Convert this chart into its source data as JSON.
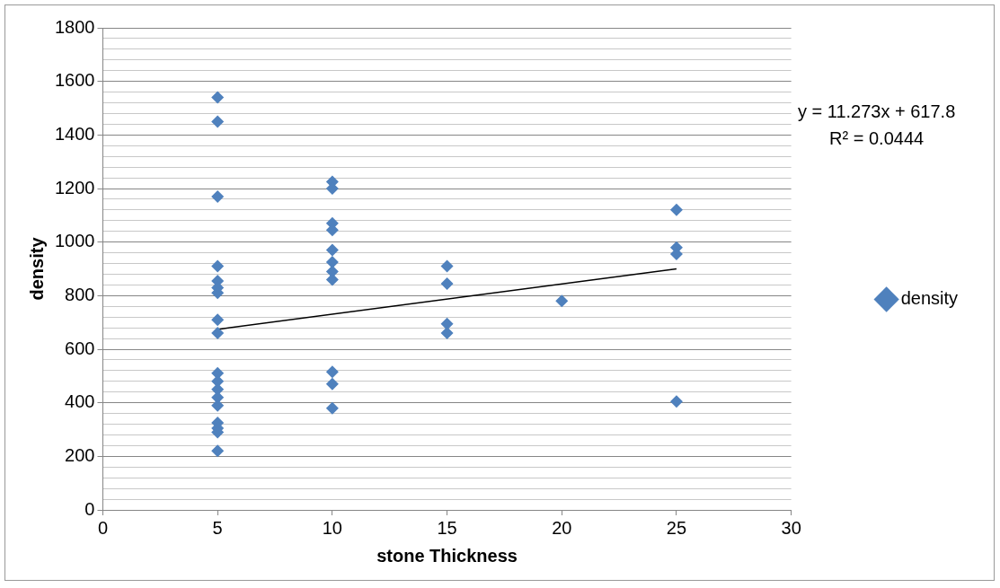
{
  "chart_data": {
    "type": "scatter",
    "xlabel": "stone Thickness",
    "ylabel": "density",
    "xlim": [
      0,
      30
    ],
    "xticks": [
      0,
      5,
      10,
      15,
      20,
      25,
      30
    ],
    "ylim": [
      0,
      1800
    ],
    "yticks": [
      0,
      {
        "value": 40,
        "label": null
      },
      {
        "value": 80,
        "label": null
      },
      {
        "value": 120,
        "label": null
      },
      {
        "value": 160,
        "label": null
      },
      200,
      {
        "value": 240,
        "label": null
      },
      {
        "value": 280,
        "label": null
      },
      {
        "value": 320,
        "label": null
      },
      {
        "value": 360,
        "label": null
      },
      400,
      {
        "value": 440,
        "label": null
      },
      {
        "value": 480,
        "label": null
      },
      {
        "value": 520,
        "label": null
      },
      {
        "value": 560,
        "label": null
      },
      600,
      {
        "value": 640,
        "label": null
      },
      {
        "value": 680,
        "label": null
      },
      {
        "value": 720,
        "label": null
      },
      {
        "value": 760,
        "label": null
      },
      800,
      {
        "value": 840,
        "label": null
      },
      {
        "value": 880,
        "label": null
      },
      {
        "value": 920,
        "label": null
      },
      {
        "value": 960,
        "label": null
      },
      1000,
      {
        "value": 1040,
        "label": null
      },
      {
        "value": 1080,
        "label": null
      },
      {
        "value": 1120,
        "label": null
      },
      {
        "value": 1160,
        "label": null
      },
      1200,
      {
        "value": 1240,
        "label": null
      },
      {
        "value": 1280,
        "label": null
      },
      {
        "value": 1320,
        "label": null
      },
      {
        "value": 1360,
        "label": null
      },
      1400,
      {
        "value": 1440,
        "label": null
      },
      {
        "value": 1480,
        "label": null
      },
      {
        "value": 1520,
        "label": null
      },
      {
        "value": 1560,
        "label": null
      },
      1600,
      {
        "value": 1640,
        "label": null
      },
      {
        "value": 1680,
        "label": null
      },
      {
        "value": 1720,
        "label": null
      },
      {
        "value": 1760,
        "label": null
      },
      1800
    ],
    "grid": "y",
    "legend": "right",
    "marker": "diamond",
    "series": [
      {
        "name": "density",
        "color": "#4f81bd",
        "x": [
          5,
          5,
          5,
          5,
          5,
          5,
          5,
          5,
          5,
          5,
          5,
          5,
          5,
          5,
          5,
          5,
          5,
          5,
          10,
          10,
          10,
          10,
          10,
          10,
          10,
          10,
          10,
          10,
          10,
          15,
          15,
          15,
          15,
          20,
          25,
          25,
          25,
          25
        ],
        "values": [
          1540,
          1450,
          1170,
          910,
          855,
          830,
          810,
          710,
          660,
          510,
          480,
          450,
          420,
          390,
          325,
          305,
          290,
          220,
          1225,
          1200,
          1070,
          1045,
          970,
          925,
          890,
          860,
          515,
          470,
          380,
          910,
          845,
          695,
          660,
          780,
          1120,
          980,
          955,
          405
        ]
      },
      {
        "type": "line",
        "color": "#000000",
        "x": [
          5,
          25
        ],
        "values": [
          674,
          900
        ],
        "marker": "none"
      }
    ],
    "annotations": [
      "y = 11.273x + 617.8",
      "R² = 0.0444"
    ]
  }
}
